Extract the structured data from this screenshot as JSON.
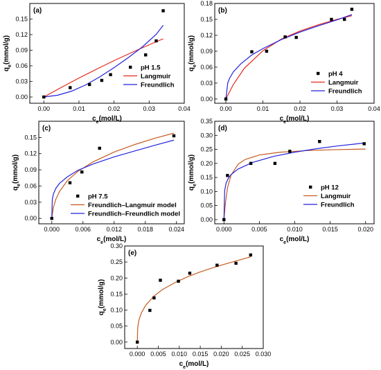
{
  "colors": {
    "red": "#e8261c",
    "blue": "#2222dd",
    "orange": "#c65a1e",
    "marker": "#000000"
  },
  "chart_data": [
    {
      "id": "a",
      "type": "scatter",
      "panel_label": "(a)",
      "xlabel": "c_e(mol/L)",
      "ylabel": "q_e(mmol/g)",
      "xlim": [
        -0.004,
        0.04
      ],
      "ylim": [
        -0.012,
        0.18
      ],
      "xticks": [
        0.0,
        0.01,
        0.02,
        0.03,
        0.04
      ],
      "xtick_labels": [
        "0.00",
        "0.01",
        "0.02",
        "0.03",
        "0.04"
      ],
      "yticks": [
        0.0,
        0.03,
        0.06,
        0.09,
        0.12,
        0.15
      ],
      "ytick_labels": [
        "0.00",
        "0.03",
        "0.06",
        "0.09",
        "0.12",
        "0.15"
      ],
      "legend_position": "right",
      "series": [
        {
          "name": "pH 1.5",
          "kind": "points",
          "x": [
            0.0,
            0.0075,
            0.013,
            0.0165,
            0.019,
            0.029,
            0.032,
            0.034
          ],
          "y": [
            0.0,
            0.018,
            0.024,
            0.032,
            0.043,
            0.081,
            0.108,
            0.166
          ]
        },
        {
          "name": "Langmuir",
          "kind": "line",
          "color": "red",
          "x": [
            0.0,
            0.005,
            0.01,
            0.015,
            0.02,
            0.025,
            0.03,
            0.034
          ],
          "y": [
            0.0,
            0.0185,
            0.0365,
            0.0535,
            0.07,
            0.0855,
            0.1005,
            0.112
          ]
        },
        {
          "name": "Freundlich",
          "kind": "line",
          "color": "blue",
          "x": [
            0.0,
            0.004,
            0.008,
            0.012,
            0.016,
            0.02,
            0.024,
            0.028,
            0.032,
            0.034
          ],
          "y": [
            0.0,
            0.0035,
            0.0115,
            0.0235,
            0.039,
            0.0565,
            0.0755,
            0.096,
            0.1205,
            0.138
          ]
        }
      ]
    },
    {
      "id": "b",
      "type": "scatter",
      "panel_label": "(b)",
      "xlabel": "c_e(mol/L)",
      "ylabel": "q_e(mmol/g)",
      "xlim": [
        -0.003,
        0.04
      ],
      "ylim": [
        -0.008,
        0.18
      ],
      "xticks": [
        0.0,
        0.01,
        0.02,
        0.03,
        0.04
      ],
      "xtick_labels": [
        "0.00",
        "0.01",
        "0.02",
        "0.03",
        "0.04"
      ],
      "yticks": [
        0.0,
        0.03,
        0.06,
        0.09,
        0.12,
        0.15,
        0.18
      ],
      "ytick_labels": [
        "0.00",
        "0.03",
        "0.06",
        "0.09",
        "0.12",
        "0.15",
        "0.18"
      ],
      "legend_position": "bottom-right",
      "series": [
        {
          "name": "pH 4",
          "kind": "points",
          "x": [
            0.0,
            0.007,
            0.011,
            0.016,
            0.019,
            0.0285,
            0.032,
            0.034
          ],
          "y": [
            0.0,
            0.089,
            0.09,
            0.117,
            0.116,
            0.15,
            0.15,
            0.169
          ]
        },
        {
          "name": "Langmuir",
          "kind": "line",
          "color": "red",
          "x": [
            0.0,
            0.002,
            0.005,
            0.01,
            0.015,
            0.02,
            0.025,
            0.03,
            0.034
          ],
          "y": [
            0.0,
            0.027,
            0.058,
            0.091,
            0.113,
            0.128,
            0.14,
            0.15,
            0.157
          ]
        },
        {
          "name": "Freundlich",
          "kind": "line",
          "color": "blue",
          "x": [
            0.0,
            0.0005,
            0.001,
            0.002,
            0.004,
            0.007,
            0.01,
            0.015,
            0.02,
            0.025,
            0.03,
            0.034
          ],
          "y": [
            0.0,
            0.03,
            0.039,
            0.051,
            0.066,
            0.083,
            0.095,
            0.112,
            0.126,
            0.138,
            0.149,
            0.159
          ]
        }
      ]
    },
    {
      "id": "c",
      "type": "scatter",
      "panel_label": "(c)",
      "xlabel": "c_e(mol/L)",
      "ylabel": "q_e(mmol/g)",
      "xlim": [
        -0.0025,
        0.0255
      ],
      "ylim": [
        -0.01,
        0.18
      ],
      "xticks": [
        0.0,
        0.006,
        0.012,
        0.018,
        0.024
      ],
      "xtick_labels": [
        "0.000",
        "0.006",
        "0.012",
        "0.018",
        "0.024"
      ],
      "yticks": [
        0.0,
        0.03,
        0.06,
        0.09,
        0.12,
        0.15
      ],
      "ytick_labels": [
        "0.00",
        "0.03",
        "0.06",
        "0.09",
        "0.12",
        "0.15"
      ],
      "legend_position": "bottom-right",
      "series": [
        {
          "name": "pH 7.5",
          "kind": "points",
          "x": [
            0.0,
            0.0035,
            0.0058,
            0.0092,
            0.0235
          ],
          "y": [
            0.0,
            0.066,
            0.086,
            0.13,
            0.153
          ]
        },
        {
          "name": "Freundlich–Langmuir model",
          "kind": "line",
          "color": "orange",
          "x": [
            0.0,
            0.0003,
            0.0008,
            0.0015,
            0.003,
            0.005,
            0.008,
            0.012,
            0.016,
            0.02,
            0.0235
          ],
          "y": [
            0.0,
            0.02,
            0.036,
            0.05,
            0.07,
            0.087,
            0.105,
            0.123,
            0.137,
            0.149,
            0.158
          ]
        },
        {
          "name": "Freundlich–Freundlich model",
          "kind": "line",
          "color": "blue",
          "x": [
            0.0,
            0.0001,
            0.0003,
            0.0008,
            0.0015,
            0.003,
            0.005,
            0.008,
            0.012,
            0.016,
            0.02,
            0.0235
          ],
          "y": [
            0.0,
            0.035,
            0.045,
            0.056,
            0.065,
            0.077,
            0.089,
            0.101,
            0.114,
            0.125,
            0.136,
            0.145
          ]
        }
      ]
    },
    {
      "id": "d",
      "type": "scatter",
      "panel_label": "(d)",
      "xlabel": "c_e(mol/L)",
      "ylabel": "q_e(mmol/g)",
      "xlim": [
        -0.0013,
        0.0212
      ],
      "ylim": [
        -0.015,
        0.35
      ],
      "xticks": [
        0.0,
        0.005,
        0.01,
        0.015,
        0.02
      ],
      "xtick_labels": [
        "0.000",
        "0.005",
        "0.010",
        "0.015",
        "0.020"
      ],
      "yticks": [
        0.0,
        0.05,
        0.1,
        0.15,
        0.2,
        0.25,
        0.3,
        0.35
      ],
      "ytick_labels": [
        "0.00",
        "0.05",
        "0.10",
        "0.15",
        "0.20",
        "0.25",
        "0.30",
        "0.35"
      ],
      "legend_position": "bottom-right",
      "series": [
        {
          "name": "pH 12",
          "kind": "points",
          "x": [
            0.0,
            0.0005,
            0.0038,
            0.0072,
            0.0093,
            0.0135,
            0.0198
          ],
          "y": [
            0.0,
            0.157,
            0.2,
            0.2,
            0.243,
            0.278,
            0.27
          ]
        },
        {
          "name": "Langmuir",
          "kind": "line",
          "color": "orange",
          "x": [
            0.0,
            0.0002,
            0.0005,
            0.001,
            0.002,
            0.003,
            0.005,
            0.008,
            0.012,
            0.016,
            0.02
          ],
          "y": [
            0.0,
            0.058,
            0.113,
            0.158,
            0.197,
            0.214,
            0.23,
            0.24,
            0.246,
            0.249,
            0.251
          ]
        },
        {
          "name": "Freundlich",
          "kind": "line",
          "color": "blue",
          "x": [
            0.0,
            0.0001,
            0.0003,
            0.0006,
            0.001,
            0.002,
            0.004,
            0.007,
            0.01,
            0.013,
            0.016,
            0.02
          ],
          "y": [
            0.0,
            0.103,
            0.129,
            0.146,
            0.16,
            0.18,
            0.203,
            0.225,
            0.24,
            0.252,
            0.262,
            0.273
          ]
        }
      ]
    },
    {
      "id": "e",
      "type": "scatter",
      "panel_label": "(e)",
      "xlabel": "c_e(mol/L)",
      "ylabel": "q_e(mmol/g)",
      "xlim": [
        -0.003,
        0.03
      ],
      "ylim": [
        -0.02,
        0.3
      ],
      "xticks": [
        0.0,
        0.005,
        0.01,
        0.015,
        0.02,
        0.025,
        0.03
      ],
      "xtick_labels": [
        "0.000",
        "0.005",
        "0.010",
        "0.015",
        "0.020",
        "0.025",
        "0.030"
      ],
      "yticks": [
        0.0,
        0.05,
        0.1,
        0.15,
        0.2,
        0.25,
        0.3
      ],
      "ytick_labels": [
        "0.00",
        "0.05",
        "0.10",
        "0.15",
        "0.20",
        "0.25",
        "0.30"
      ],
      "legend_position": "none",
      "series": [
        {
          "name": "",
          "kind": "points",
          "x": [
            0.0,
            0.003,
            0.004,
            0.0055,
            0.0098,
            0.0125,
            0.019,
            0.0235,
            0.027
          ],
          "y": [
            0.0,
            0.099,
            0.138,
            0.193,
            0.19,
            0.215,
            0.24,
            0.246,
            0.272
          ]
        },
        {
          "name": "",
          "kind": "line",
          "color": "orange",
          "x": [
            0.0,
            0.0001,
            0.0004,
            0.001,
            0.002,
            0.004,
            0.006,
            0.009,
            0.012,
            0.015,
            0.018,
            0.021,
            0.024,
            0.027
          ],
          "y": [
            0.0,
            0.046,
            0.069,
            0.092,
            0.115,
            0.144,
            0.164,
            0.186,
            0.204,
            0.219,
            0.232,
            0.244,
            0.255,
            0.266
          ]
        }
      ]
    }
  ]
}
